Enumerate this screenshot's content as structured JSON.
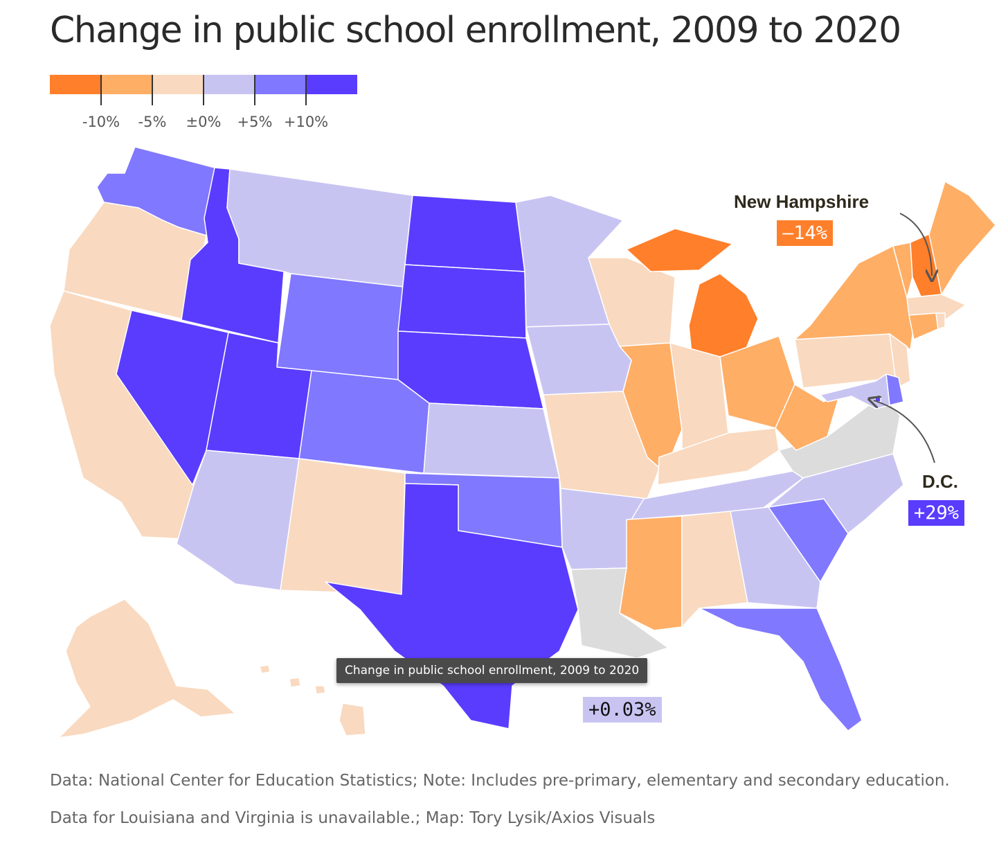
{
  "title": "Change in public school enrollment, 2009 to 2020",
  "legend": {
    "bins": [
      {
        "color": "#ff7f2a"
      },
      {
        "color": "#ffae66"
      },
      {
        "color": "#f9d9bf"
      },
      {
        "color": "#c8c4f2"
      },
      {
        "color": "#8078ff"
      },
      {
        "color": "#5a3cff"
      }
    ],
    "tick_labels": [
      "-10%",
      "-5%",
      "±0%",
      "+5%",
      "+10%"
    ],
    "no_data_color": "#dcdcdc"
  },
  "callouts": {
    "new_hampshire": {
      "name": "New Hampshire",
      "value": "–14%",
      "color": "#ff7f2a"
    },
    "dc": {
      "name": "D.C.",
      "value": "+29%",
      "color": "#5a3cff"
    },
    "us_average": {
      "value": "+0.03%",
      "color": "#c8c4f2"
    }
  },
  "tooltip": "Change in public school enrollment, 2009 to 2020",
  "source_text": "Data: National Center for Education Statistics; Note: Includes pre-primary, elementary and secondary education. Data for Louisiana and Virginia is unavailable.; Map: Tory Lysik/Axios Visuals",
  "states": {
    "WA": {
      "bin": 4
    },
    "OR": {
      "bin": 2
    },
    "CA": {
      "bin": 2
    },
    "ID": {
      "bin": 5
    },
    "NV": {
      "bin": 5
    },
    "MT": {
      "bin": 3
    },
    "WY": {
      "bin": 4
    },
    "UT": {
      "bin": 5
    },
    "AZ": {
      "bin": 3
    },
    "CO": {
      "bin": 4
    },
    "NM": {
      "bin": 2
    },
    "ND": {
      "bin": 5
    },
    "SD": {
      "bin": 5
    },
    "NE": {
      "bin": 5
    },
    "KS": {
      "bin": 3
    },
    "OK": {
      "bin": 4
    },
    "TX": {
      "bin": 5
    },
    "MN": {
      "bin": 3
    },
    "IA": {
      "bin": 3
    },
    "MO": {
      "bin": 2
    },
    "AR": {
      "bin": 3
    },
    "LA": {
      "bin": -1
    },
    "WI": {
      "bin": 2
    },
    "IL": {
      "bin": 1
    },
    "MI": {
      "bin": 0
    },
    "IN": {
      "bin": 2
    },
    "OH": {
      "bin": 1
    },
    "KY": {
      "bin": 2
    },
    "TN": {
      "bin": 3
    },
    "MS": {
      "bin": 1
    },
    "AL": {
      "bin": 2
    },
    "GA": {
      "bin": 3
    },
    "FL": {
      "bin": 4
    },
    "SC": {
      "bin": 4
    },
    "NC": {
      "bin": 3
    },
    "VA": {
      "bin": -1
    },
    "WV": {
      "bin": 1
    },
    "PA": {
      "bin": 2
    },
    "NY": {
      "bin": 1
    },
    "VT": {
      "bin": 1
    },
    "NH": {
      "bin": 0
    },
    "ME": {
      "bin": 1
    },
    "MA": {
      "bin": 2
    },
    "CT": {
      "bin": 1
    },
    "RI": {
      "bin": 2
    },
    "NJ": {
      "bin": 2
    },
    "DE": {
      "bin": 4
    },
    "MD": {
      "bin": 3
    },
    "DC": {
      "bin": 5
    },
    "AK": {
      "bin": 2
    },
    "HI": {
      "bin": 2
    }
  }
}
